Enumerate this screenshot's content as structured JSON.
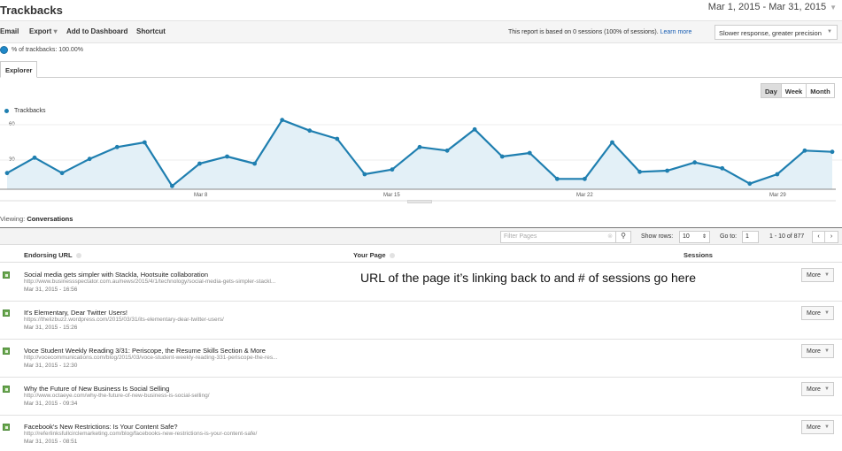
{
  "header": {
    "title": "Trackbacks",
    "date_range": "Mar 1, 2015 - Mar 31, 2015"
  },
  "toolbar": {
    "email": "Email",
    "export": "Export",
    "add_to_dashboard": "Add to Dashboard",
    "shortcut": "Shortcut",
    "sampling_note": "This report is based on 0 sessions (100% of sessions).",
    "learn_more": "Learn more",
    "precision_select": "Slower response, greater precision"
  },
  "segment": {
    "label": "% of trackbacks: 100.00%",
    "color": "#1f88c9"
  },
  "tabs": {
    "explorer": "Explorer"
  },
  "periods": {
    "day": "Day",
    "week": "Week",
    "month": "Month",
    "active": "Day"
  },
  "chart_data": {
    "type": "area",
    "title": "",
    "legend": [
      "Trackbacks"
    ],
    "series_color": "#1f7fb0",
    "x": [
      "Mar 1",
      "Mar 2",
      "Mar 3",
      "Mar 4",
      "Mar 5",
      "Mar 6",
      "Mar 7",
      "Mar 8",
      "Mar 9",
      "Mar 10",
      "Mar 11",
      "Mar 12",
      "Mar 13",
      "Mar 14",
      "Mar 15",
      "Mar 16",
      "Mar 17",
      "Mar 18",
      "Mar 19",
      "Mar 20",
      "Mar 21",
      "Mar 22",
      "Mar 23",
      "Mar 24",
      "Mar 25",
      "Mar 26",
      "Mar 27",
      "Mar 28",
      "Mar 29",
      "Mar 30",
      "Mar 31"
    ],
    "series": [
      {
        "name": "Trackbacks",
        "values": [
          19,
          32,
          19,
          31,
          41,
          45,
          8,
          27,
          33,
          27,
          64,
          55,
          48,
          18,
          22,
          41,
          38,
          56,
          33,
          36,
          14,
          14,
          45,
          20,
          21,
          28,
          23,
          10,
          18,
          38,
          37
        ]
      }
    ],
    "x_tick_labels": [
      "Mar 8",
      "Mar 15",
      "Mar 22",
      "Mar 29"
    ],
    "y_tick_labels": [
      "30",
      "60"
    ],
    "xlabel": "",
    "ylabel": "",
    "ylim": [
      0,
      70
    ],
    "grid": true,
    "legend_position": "top-left"
  },
  "table": {
    "viewing_label": "Viewing:",
    "viewing_value": "Conversations",
    "filter_placeholder": "Filter Pages",
    "show_rows_label": "Show rows:",
    "show_rows_value": "10",
    "goto_label": "Go to:",
    "goto_value": "1",
    "range": "1 - 10 of 877",
    "prev": "‹",
    "next": "›",
    "columns": {
      "endorsing_url": "Endorsing URL",
      "your_page": "Your Page",
      "sessions": "Sessions"
    },
    "more_label": "More",
    "rows": [
      {
        "title": "Social media gets simpler with Stackla, Hootsuite collaboration",
        "url": "http://www.businessspectator.com.au/news/2015/4/1/technology/social-media-gets-simpler-stackl...",
        "date": "Mar 31, 2015 - 16:56"
      },
      {
        "title": "It's Elementary, Dear Twitter Users!",
        "url": "https://thelizbuzz.wordpress.com/2015/03/31/its-elementary-dear-twitter-users/",
        "date": "Mar 31, 2015 - 15:26"
      },
      {
        "title": "Voce Student Weekly Reading 3/31: Periscope, the Resume Skills Section & More",
        "url": "http://vocecommunications.com/blog/2015/03/voce-student-weekly-reading-331-periscope-the-res...",
        "date": "Mar 31, 2015 - 12:30"
      },
      {
        "title": "Why the Future of New Business Is Social Selling",
        "url": "http://www.octaeye.com/why-the-future-of-new-business-is-social-selling/",
        "date": "Mar 31, 2015 - 09:34"
      },
      {
        "title": "Facebook's New Restrictions: Is Your Content Safe?",
        "url": "http://referlinksfullcirclemarketing.com/blog/facebooks-new-restrictions-is-your-content-safe/",
        "date": "Mar 31, 2015 - 08:51"
      }
    ],
    "annotation": "URL of the page it’s linking back to and # of sessions go here"
  }
}
